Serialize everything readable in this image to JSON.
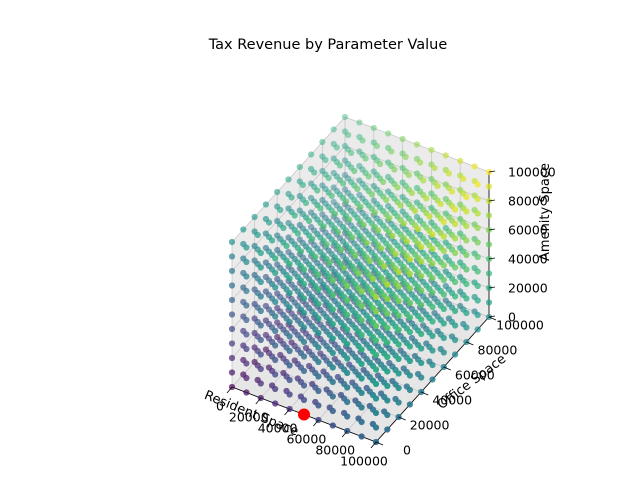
{
  "chart_data": {
    "type": "scatter",
    "projection": "3d",
    "title": "Tax Revenue by Parameter Value",
    "xlabel": "Resident Space",
    "ylabel": "Office Space",
    "zlabel": "Amenity Space",
    "xlim": [
      0,
      100000
    ],
    "ylim": [
      0,
      100000
    ],
    "zlim": [
      0,
      100000
    ],
    "xticks": [
      "0",
      "20000",
      "40000",
      "60000",
      "80000",
      "100000"
    ],
    "yticks": [
      "0",
      "20000",
      "40000",
      "60000",
      "80000",
      "100000"
    ],
    "zticks": [
      "0",
      "20000",
      "40000",
      "60000",
      "80000",
      "100000"
    ],
    "grid": true,
    "colormap": "viridis",
    "series": [
      {
        "marker": "circle",
        "x_values": [
          0,
          10000,
          20000,
          30000,
          40000,
          50000,
          60000,
          70000,
          80000,
          90000,
          100000
        ],
        "y_values": [
          0,
          10000,
          20000,
          30000,
          40000,
          50000,
          60000,
          70000,
          80000,
          90000,
          100000
        ],
        "z_values": [
          0,
          10000,
          20000,
          30000,
          40000,
          50000,
          60000,
          70000,
          80000,
          90000,
          100000
        ],
        "layout": "full grid (every combination of x, y, z)"
      },
      {
        "marker": "circle",
        "color": "#ff0000",
        "x": 50000,
        "y": 0,
        "z": 0
      }
    ]
  },
  "colors": {
    "pane_side": "#ebebeb",
    "pane_floor": "#e6e6e6",
    "grid": "#c8c8c8",
    "highlight": "#ff0000"
  }
}
